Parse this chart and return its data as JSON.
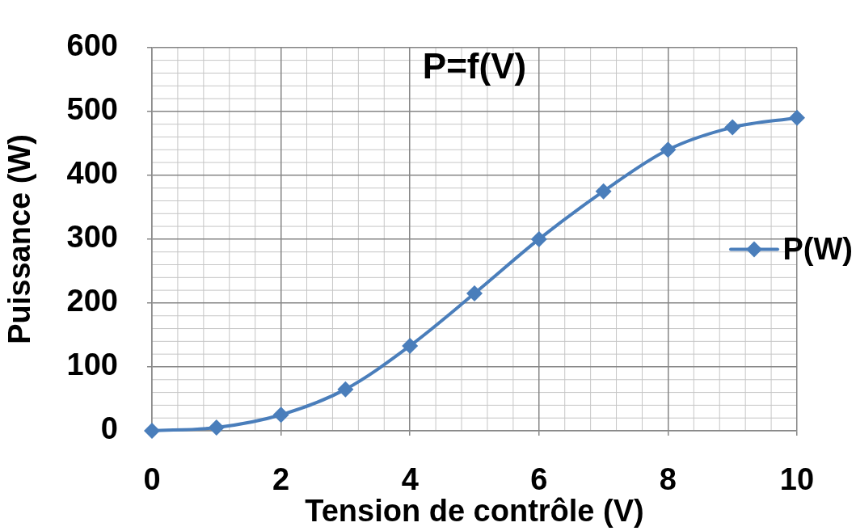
{
  "chart_data": {
    "type": "line",
    "title": "P=f(V)",
    "xlabel": "Tension de contrôle (V)",
    "ylabel": "Puissance (W)",
    "x": [
      0,
      1,
      2,
      3,
      4,
      5,
      6,
      7,
      8,
      9,
      10
    ],
    "series": [
      {
        "name": "P(W)",
        "color": "#4a7ebb",
        "values": [
          0,
          5,
          25,
          65,
          133,
          215,
          300,
          375,
          440,
          475,
          490
        ]
      }
    ],
    "xlim": [
      0,
      10
    ],
    "xticks": [
      0,
      2,
      4,
      6,
      8,
      10
    ],
    "ylim": [
      0,
      600
    ],
    "yticks": [
      0,
      100,
      200,
      300,
      400,
      500,
      600
    ],
    "grid": true,
    "legend": "right",
    "marker": "diamond",
    "line_style": "solid"
  }
}
